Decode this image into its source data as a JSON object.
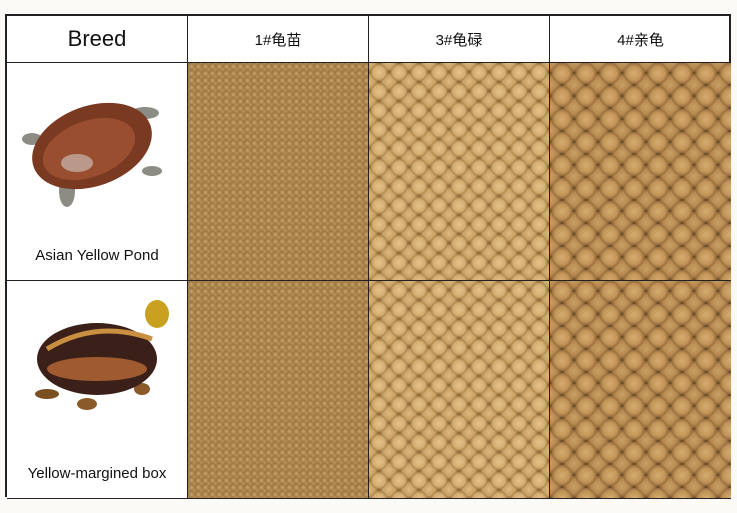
{
  "header": {
    "breed": "Breed",
    "columns": [
      "1#龟苗",
      "3#龟碌",
      "4#亲龟"
    ]
  },
  "rows": [
    {
      "breed": "Asian Yellow Pond"
    },
    {
      "breed": "Yellow-margined box"
    }
  ]
}
